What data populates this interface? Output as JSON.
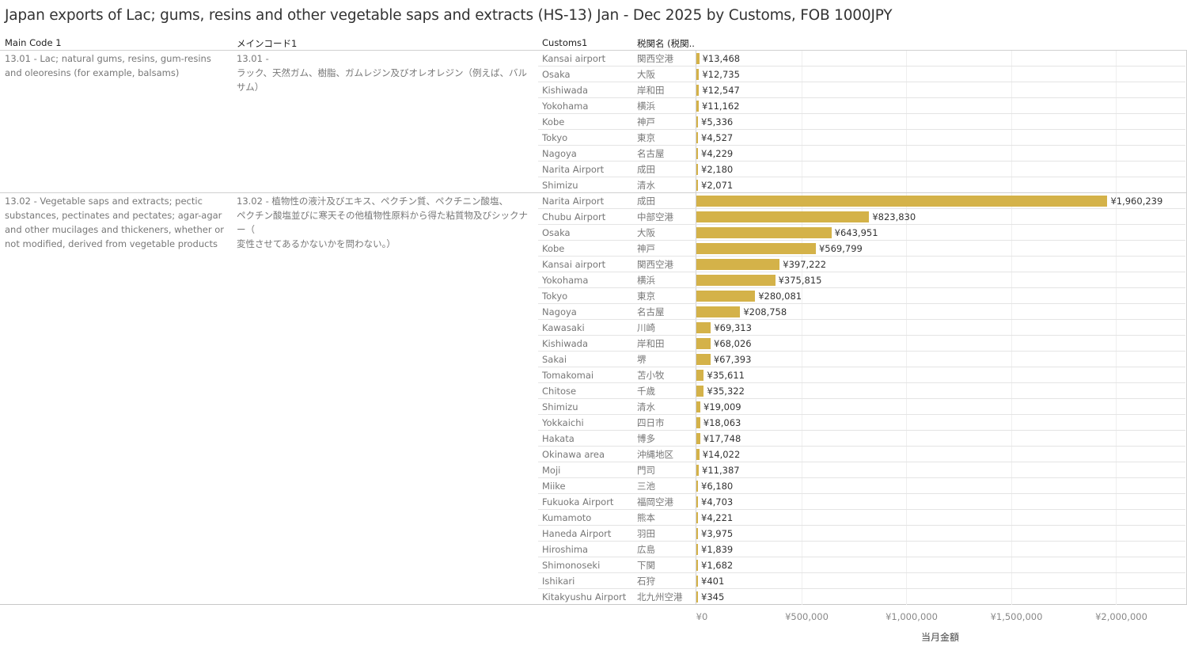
{
  "title": "Japan exports of Lac; gums, resins and other vegetable saps and extracts (HS-13) Jan - Dec 2025 by Customs, FOB 1000JPY",
  "headers": {
    "main_code": "Main Code 1",
    "main_code_jp": "メインコード1",
    "customs": "Customs1",
    "customs_jp": "税関名 (税関.."
  },
  "chart_data": {
    "type": "bar",
    "orientation": "horizontal",
    "xlabel": "当月金額",
    "xlim": [
      0,
      2300000
    ],
    "ticks": [
      0,
      500000,
      1000000,
      1500000,
      2000000
    ],
    "tick_labels": [
      "¥0",
      "¥500,000",
      "¥1,000,000",
      "¥1,500,000",
      "¥2,000,000"
    ],
    "bar_color": "#d4b249",
    "groups": [
      {
        "main_code": "13.01 - Lac; natural gums, resins, gum-resins and oleoresins (for example, balsams)",
        "main_code_jp": "13.01 -\nラック、天然ガム、樹脂、ガムレジン及びオレオレジン（例えば、バルサム）",
        "rows": [
          [
            "Kansai airport",
            "関西空港",
            13468,
            "¥13,468"
          ],
          [
            "Osaka",
            "大阪",
            12735,
            "¥12,735"
          ],
          [
            "Kishiwada",
            "岸和田",
            12547,
            "¥12,547"
          ],
          [
            "Yokohama",
            "横浜",
            11162,
            "¥11,162"
          ],
          [
            "Kobe",
            "神戸",
            5336,
            "¥5,336"
          ],
          [
            "Tokyo",
            "東京",
            4527,
            "¥4,527"
          ],
          [
            "Nagoya",
            "名古屋",
            4229,
            "¥4,229"
          ],
          [
            "Narita Airport",
            "成田",
            2180,
            "¥2,180"
          ],
          [
            "Shimizu",
            "清水",
            2071,
            "¥2,071"
          ]
        ]
      },
      {
        "main_code": "13.02 - Vegetable saps and extracts; pectic substances, pectinates and pectates; agar-agar and other mucilages and thickeners, whether or not modified, derived from vegetable products",
        "main_code_jp": "13.02 - 植物性の液汁及びエキス、ペクチン質、ペクチニン酸塩、\nペクチン酸塩並びに寒天その他植物性原料から得た粘質物及びシックナー（\n変性させてあるかないかを問わない。）",
        "rows": [
          [
            "Narita Airport",
            "成田",
            1960239,
            "¥1,960,239"
          ],
          [
            "Chubu Airport",
            "中部空港",
            823830,
            "¥823,830"
          ],
          [
            "Osaka",
            "大阪",
            643951,
            "¥643,951"
          ],
          [
            "Kobe",
            "神戸",
            569799,
            "¥569,799"
          ],
          [
            "Kansai airport",
            "関西空港",
            397222,
            "¥397,222"
          ],
          [
            "Yokohama",
            "横浜",
            375815,
            "¥375,815"
          ],
          [
            "Tokyo",
            "東京",
            280081,
            "¥280,081"
          ],
          [
            "Nagoya",
            "名古屋",
            208758,
            "¥208,758"
          ],
          [
            "Kawasaki",
            "川崎",
            69313,
            "¥69,313"
          ],
          [
            "Kishiwada",
            "岸和田",
            68026,
            "¥68,026"
          ],
          [
            "Sakai",
            "堺",
            67393,
            "¥67,393"
          ],
          [
            "Tomakomai",
            "苫小牧",
            35611,
            "¥35,611"
          ],
          [
            "Chitose",
            "千歳",
            35322,
            "¥35,322"
          ],
          [
            "Shimizu",
            "清水",
            19009,
            "¥19,009"
          ],
          [
            "Yokkaichi",
            "四日市",
            18063,
            "¥18,063"
          ],
          [
            "Hakata",
            "博多",
            17748,
            "¥17,748"
          ],
          [
            "Okinawa area",
            "沖縄地区",
            14022,
            "¥14,022"
          ],
          [
            "Moji",
            "門司",
            11387,
            "¥11,387"
          ],
          [
            "Miike",
            "三池",
            6180,
            "¥6,180"
          ],
          [
            "Fukuoka Airport",
            "福岡空港",
            4703,
            "¥4,703"
          ],
          [
            "Kumamoto",
            "熊本",
            4221,
            "¥4,221"
          ],
          [
            "Haneda Airport",
            "羽田",
            3975,
            "¥3,975"
          ],
          [
            "Hiroshima",
            "広島",
            1839,
            "¥1,839"
          ],
          [
            "Shimonoseki",
            "下関",
            1682,
            "¥1,682"
          ],
          [
            "Ishikari",
            "石狩",
            401,
            "¥401"
          ],
          [
            "Kitakyushu Airport",
            "北九州空港",
            345,
            "¥345"
          ]
        ]
      }
    ]
  }
}
